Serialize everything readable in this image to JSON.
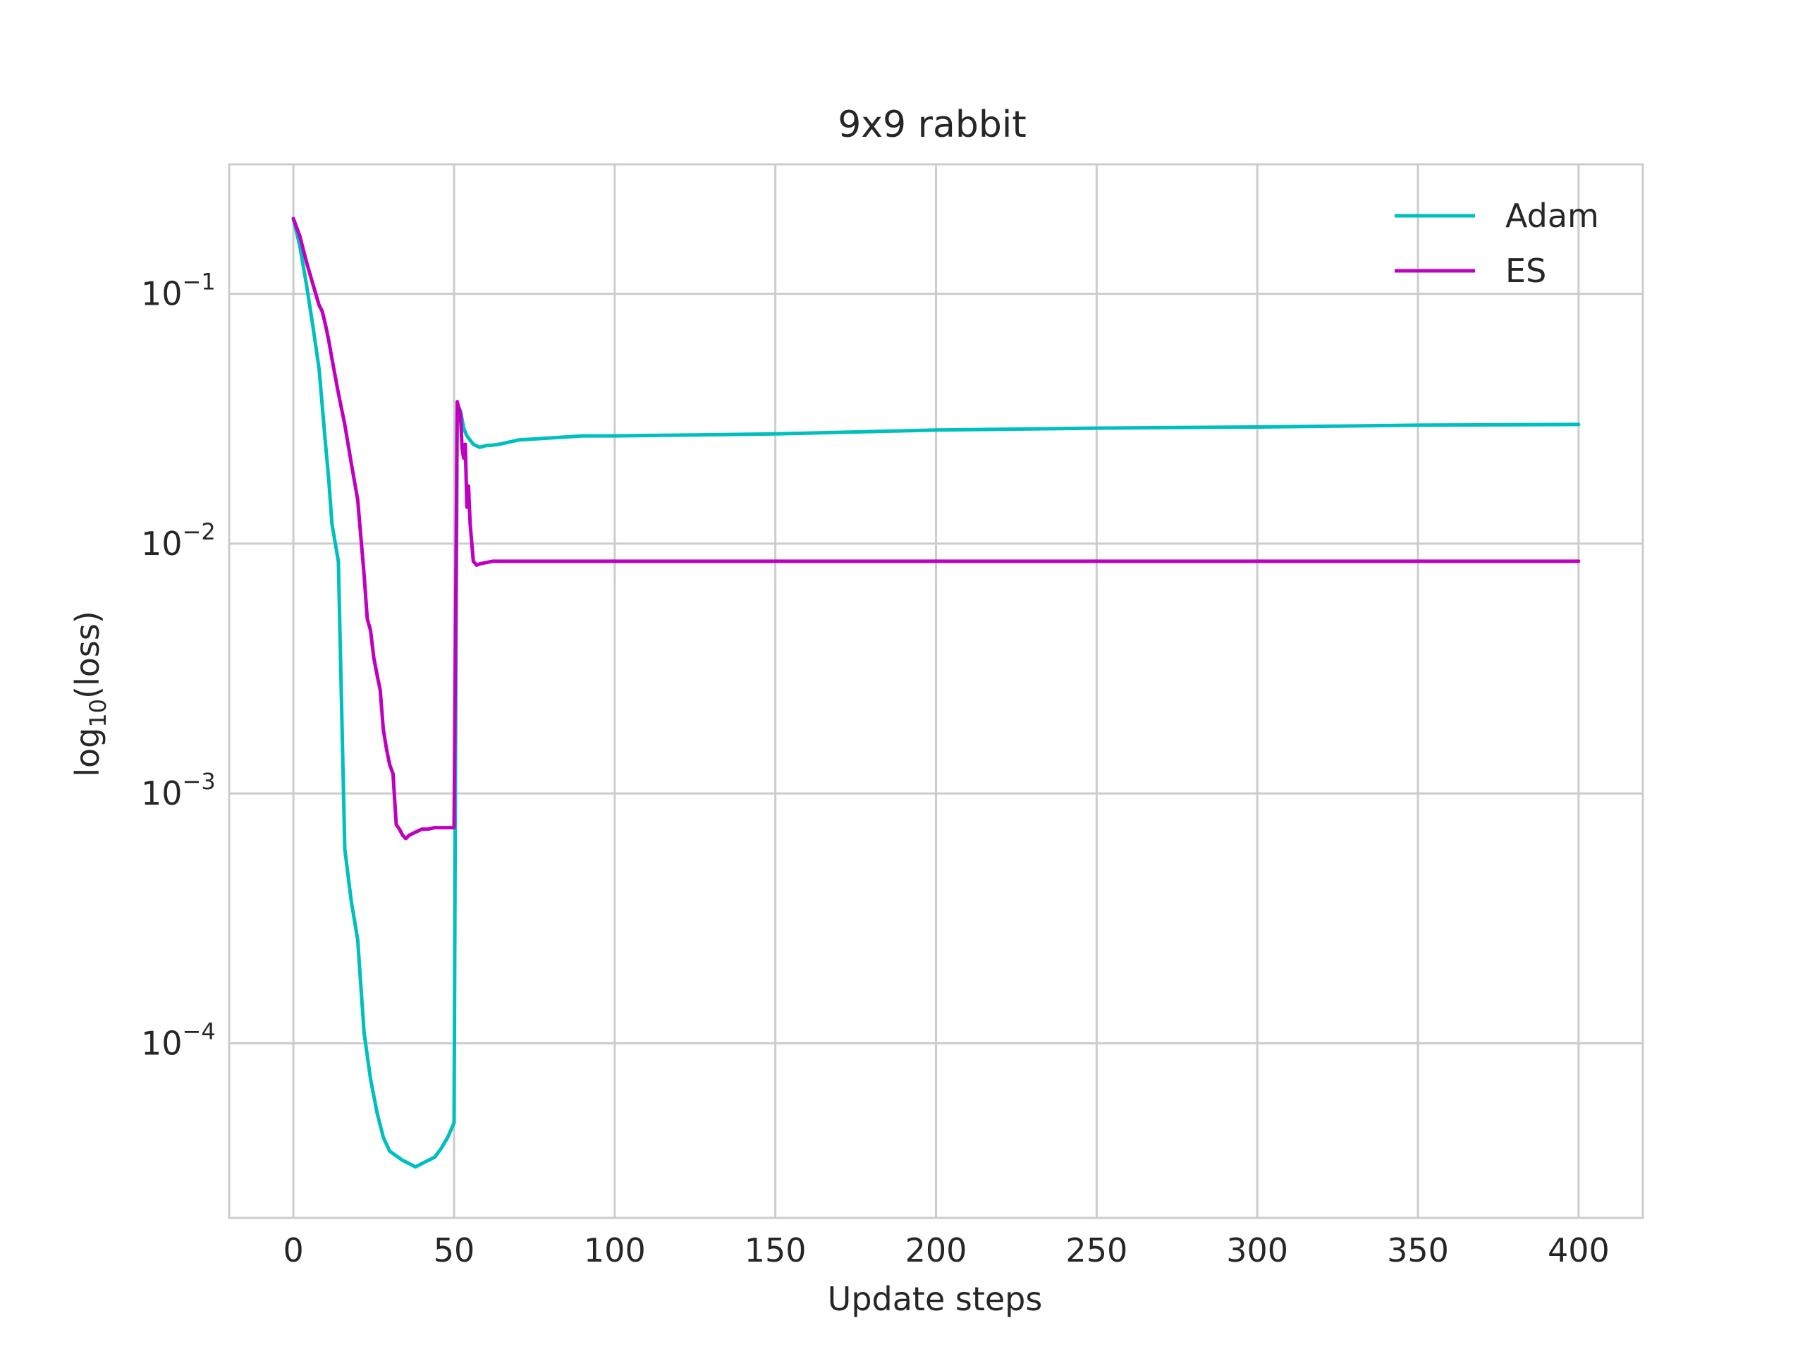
{
  "chart_data": {
    "type": "line",
    "title": "9x9 rabbit",
    "xlabel": "Update steps",
    "ylabel_prefix": "log",
    "ylabel_subscript": "10",
    "ylabel_suffix": "(loss)",
    "xlim": [
      -20,
      420
    ],
    "ylim": [
      2e-05,
      0.33
    ],
    "yscale": "log",
    "grid": true,
    "legend_position": "top-right",
    "x_ticks": [
      {
        "value": 0,
        "label": "0"
      },
      {
        "value": 50,
        "label": "50"
      },
      {
        "value": 100,
        "label": "100"
      },
      {
        "value": 150,
        "label": "150"
      },
      {
        "value": 200,
        "label": "200"
      },
      {
        "value": 250,
        "label": "250"
      },
      {
        "value": 300,
        "label": "300"
      },
      {
        "value": 350,
        "label": "350"
      },
      {
        "value": 400,
        "label": "400"
      }
    ],
    "y_ticks": [
      {
        "value": 0.1,
        "base": "10",
        "exp": "−1"
      },
      {
        "value": 0.01,
        "base": "10",
        "exp": "−2"
      },
      {
        "value": 0.001,
        "base": "10",
        "exp": "−3"
      },
      {
        "value": 0.0001,
        "base": "10",
        "exp": "−4"
      }
    ],
    "series": [
      {
        "name": "Adam",
        "color": "#00bfbf",
        "x": [
          0,
          2,
          4,
          6,
          8,
          10,
          11,
          12,
          14,
          16,
          18,
          20,
          22,
          24,
          26,
          28,
          30,
          34,
          36,
          38,
          40,
          42,
          44,
          46,
          48,
          50,
          50.5,
          51,
          52,
          53,
          54,
          56,
          58,
          60,
          62,
          64,
          66,
          70,
          80,
          90,
          100,
          120,
          150,
          200,
          250,
          300,
          350,
          400
        ],
        "y": [
          0.2,
          0.155,
          0.11,
          0.075,
          0.05,
          0.025,
          0.018,
          0.012,
          0.0085,
          0.0006,
          0.00037,
          0.00026,
          0.00011,
          7.2e-05,
          5.3e-05,
          4.2e-05,
          3.7e-05,
          3.4e-05,
          3.3e-05,
          3.2e-05,
          3.3e-05,
          3.4e-05,
          3.5e-05,
          3.8e-05,
          4.2e-05,
          4.8e-05,
          0.002,
          0.036,
          0.034,
          0.029,
          0.027,
          0.025,
          0.0243,
          0.0247,
          0.0248,
          0.025,
          0.0253,
          0.026,
          0.0265,
          0.027,
          0.027,
          0.0272,
          0.0275,
          0.0285,
          0.029,
          0.0293,
          0.0298,
          0.03
        ]
      },
      {
        "name": "ES",
        "color": "#bf00bf",
        "x": [
          0,
          2,
          4,
          6,
          8,
          9,
          10,
          11,
          12,
          14,
          16,
          18,
          20,
          22,
          23,
          24,
          25,
          26,
          27,
          28,
          29,
          30,
          31,
          32,
          33,
          34,
          35,
          36,
          38,
          40,
          42,
          44,
          46,
          48,
          50,
          51,
          52,
          52.5,
          53,
          53.5,
          54,
          54.5,
          55,
          56,
          57,
          58,
          60,
          62,
          65,
          70,
          100,
          150,
          200,
          250,
          300,
          350,
          400
        ],
        "y": [
          0.2,
          0.17,
          0.135,
          0.11,
          0.09,
          0.085,
          0.075,
          0.065,
          0.055,
          0.04,
          0.03,
          0.021,
          0.015,
          0.0075,
          0.005,
          0.0045,
          0.0035,
          0.003,
          0.0026,
          0.0018,
          0.0015,
          0.0013,
          0.0012,
          0.00075,
          0.00072,
          0.00068,
          0.00066,
          0.00068,
          0.0007,
          0.00072,
          0.00072,
          0.00073,
          0.00073,
          0.00073,
          0.00073,
          0.037,
          0.033,
          0.024,
          0.022,
          0.025,
          0.014,
          0.017,
          0.012,
          0.0085,
          0.0082,
          0.0083,
          0.0084,
          0.0085,
          0.0085,
          0.0085,
          0.0085,
          0.0085,
          0.0085,
          0.0085,
          0.0085,
          0.0085,
          0.0085
        ]
      }
    ]
  }
}
